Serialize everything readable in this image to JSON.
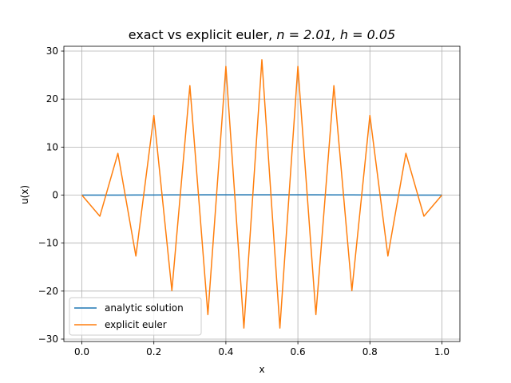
{
  "chart_data": {
    "type": "line",
    "title_text": "exact vs explicit euler, ",
    "title_math": "n = 2.01, h = 0.05",
    "xlabel": "x",
    "ylabel": "u(x)",
    "xlim": [
      -0.05,
      1.05
    ],
    "ylim": [
      -30.5,
      31.0
    ],
    "grid": true,
    "legend_position": "lower-left",
    "xticks": [
      0.0,
      0.2,
      0.4,
      0.6,
      0.8,
      1.0
    ],
    "xtick_labels": [
      "0.0",
      "0.2",
      "0.4",
      "0.6",
      "0.8",
      "1.0"
    ],
    "yticks": [
      -30,
      -20,
      -10,
      0,
      10,
      20,
      30
    ],
    "ytick_labels": [
      "−30",
      "−20",
      "−10",
      "0",
      "10",
      "20",
      "30"
    ],
    "x": [
      0.0,
      0.05,
      0.1,
      0.15,
      0.2,
      0.25,
      0.3,
      0.35,
      0.4,
      0.45,
      0.5,
      0.55,
      0.6,
      0.65,
      0.7,
      0.75,
      0.8,
      0.85,
      0.9,
      0.95,
      1.0
    ],
    "series": [
      {
        "name": "analytic solution",
        "color": "#1f77b4",
        "values": [
          0.0,
          0.0,
          0.01,
          0.02,
          0.03,
          0.04,
          0.05,
          0.06,
          0.06,
          0.06,
          0.06,
          0.06,
          0.06,
          0.06,
          0.05,
          0.04,
          0.03,
          0.02,
          0.01,
          0.0,
          0.0
        ]
      },
      {
        "name": "explicit euler",
        "color": "#ff7f0e",
        "values": [
          0.0,
          -4.4,
          8.7,
          -12.7,
          16.6,
          -19.9,
          22.8,
          -24.9,
          26.8,
          -27.7,
          28.2,
          -27.7,
          26.8,
          -24.9,
          22.8,
          -19.9,
          16.6,
          -12.7,
          8.7,
          -4.4,
          0.0
        ]
      }
    ]
  }
}
